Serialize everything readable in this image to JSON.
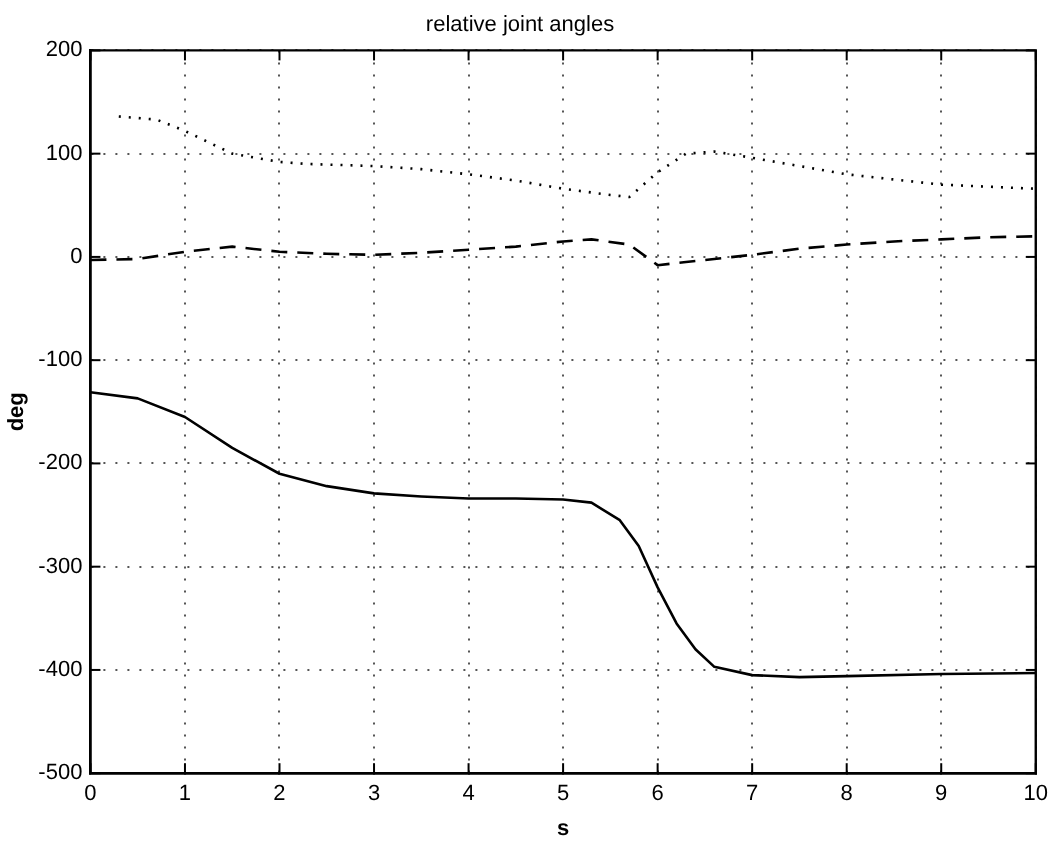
{
  "chart_data": {
    "type": "line",
    "title": "relative joint angles",
    "xlabel": "s",
    "ylabel": "deg",
    "xlim": [
      0,
      10
    ],
    "xticks": [
      0,
      1,
      2,
      3,
      4,
      5,
      6,
      7,
      8,
      9,
      10
    ],
    "ylim": [
      -500,
      200
    ],
    "yticks": [
      -500,
      -400,
      -300,
      -200,
      -100,
      0,
      100,
      200
    ],
    "grid": true,
    "marker": "none",
    "series": [
      {
        "color": "#000000",
        "line_style": "solid",
        "x": [
          0,
          0.5,
          1,
          1.5,
          2,
          2.5,
          3,
          3.5,
          4,
          4.5,
          5,
          5.3,
          5.6,
          5.8,
          6,
          6.2,
          6.4,
          6.6,
          7,
          7.5,
          8,
          9,
          10
        ],
        "values": [
          -131,
          -137,
          -155,
          -185,
          -210,
          -222,
          -229,
          -232,
          -234,
          -234,
          -235,
          -238,
          -255,
          -280,
          -320,
          -355,
          -380,
          -397,
          -405,
          -407,
          -406,
          -404,
          -403
        ]
      },
      {
        "color": "#000000",
        "line_style": "dashed",
        "x": [
          0,
          0.5,
          1,
          1.5,
          2,
          2.5,
          3,
          3.5,
          4,
          4.5,
          5,
          5.3,
          5.7,
          6,
          6.3,
          7,
          7.5,
          8,
          8.5,
          9,
          9.5,
          10
        ],
        "values": [
          -3,
          -2,
          5,
          10,
          5,
          3,
          2,
          4,
          7,
          10,
          15,
          17,
          12,
          -8,
          -5,
          2,
          8,
          12,
          15,
          17,
          19,
          20
        ]
      },
      {
        "color": "#000000",
        "line_style": "dotted",
        "x": [
          0.3,
          0.7,
          1,
          1.5,
          2,
          2.3,
          3,
          3.5,
          4,
          4.5,
          5,
          5.5,
          5.7,
          6,
          6.3,
          6.6,
          7,
          7.5,
          8,
          8.5,
          9,
          9.5,
          10
        ],
        "values": [
          136,
          133,
          122,
          100,
          92,
          90,
          88,
          85,
          80,
          74,
          66,
          60,
          58,
          82,
          100,
          102,
          96,
          88,
          80,
          75,
          70,
          68,
          66
        ]
      }
    ]
  }
}
